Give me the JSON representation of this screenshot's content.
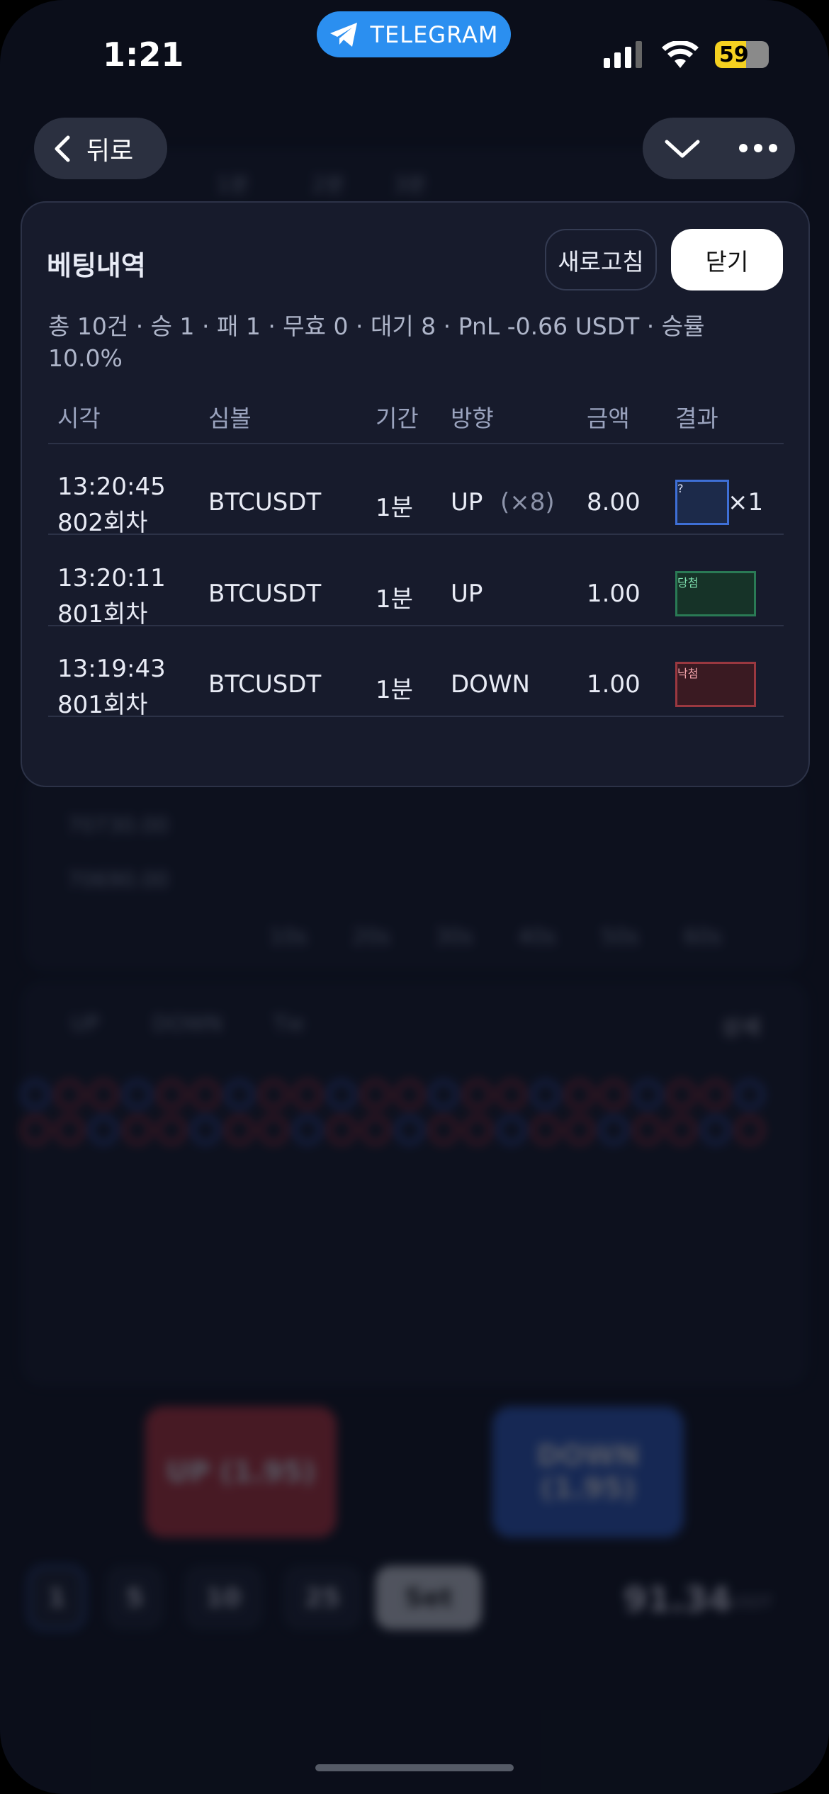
{
  "status_bar": {
    "time": "1:21",
    "app": "TELEGRAM",
    "battery": "59"
  },
  "nav": {
    "back": "뒤로"
  },
  "background": {
    "tabs": [
      "1분",
      "2분",
      "3분"
    ],
    "chart_y_labels": [
      "70730.00",
      "70690.00"
    ],
    "chart_x_labels": [
      "10s",
      "20s",
      "30s",
      "40s",
      "50s",
      "60s"
    ],
    "legend": [
      "UP",
      "DOWN",
      "Tie"
    ],
    "detail": "상세",
    "bet_buttons": [
      "UP (1.95)",
      "DOWN (1.95)"
    ],
    "chips": [
      "1",
      "5",
      "10",
      "25",
      "Set"
    ],
    "balance": "91.34",
    "balance_unit": "USDT"
  },
  "modal": {
    "title": "베팅내역",
    "buttons": {
      "refresh": "새로고침",
      "close": "닫기"
    },
    "summary": "총 10건 · 승 1 · 패 1 · 무효 0 · 대기 8 · PnL -0.66 USDT · 승률 10.0%",
    "table": {
      "headers": [
        "시각",
        "심볼",
        "기간",
        "방향",
        "금액",
        "결과"
      ],
      "rows": [
        {
          "time": "13:20:45",
          "round": "802회차",
          "symbol": "BTCUSDT",
          "period": "1분",
          "direction": "UP",
          "multiplier": "(×8)",
          "amount": "8.00",
          "result": "?",
          "result_count": "×1"
        },
        {
          "time": "13:20:11",
          "round": "801회차",
          "symbol": "BTCUSDT",
          "period": "1분",
          "direction": "UP",
          "amount": "1.00",
          "result": "당첨"
        },
        {
          "time": "13:19:43",
          "round": "801회차",
          "symbol": "BTCUSDT",
          "period": "1분",
          "direction": "DOWN",
          "amount": "1.00",
          "result": "낙첨"
        }
      ]
    }
  }
}
